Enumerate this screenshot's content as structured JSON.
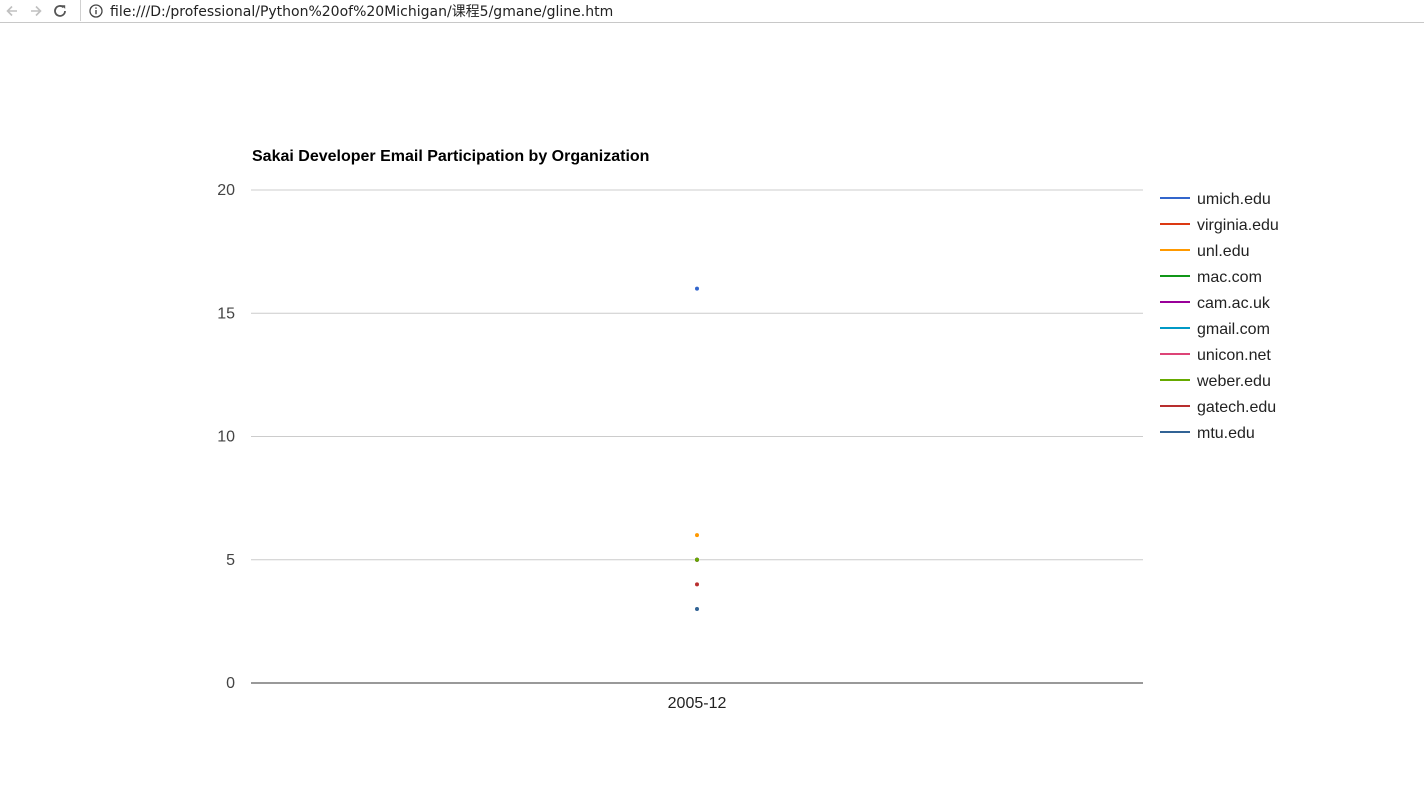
{
  "browser": {
    "url": "file:///D:/professional/Python%20of%20Michigan/课程5/gmane/gline.htm"
  },
  "chart_data": {
    "type": "line",
    "title": "Sakai Developer Email Participation by Organization",
    "xlabel": "",
    "ylabel": "",
    "categories": [
      "2005-12"
    ],
    "ylim": [
      0,
      20
    ],
    "yticks": [
      0,
      5,
      10,
      15,
      20
    ],
    "grid": true,
    "legend": "right",
    "series": [
      {
        "name": "umich.edu",
        "color": "#3366cc",
        "values": [
          16
        ]
      },
      {
        "name": "virginia.edu",
        "color": "#dc3912",
        "values": [
          5
        ]
      },
      {
        "name": "unl.edu",
        "color": "#ff9900",
        "values": [
          6
        ]
      },
      {
        "name": "mac.com",
        "color": "#109618",
        "values": [
          5
        ]
      },
      {
        "name": "cam.ac.uk",
        "color": "#990099",
        "values": [
          5
        ]
      },
      {
        "name": "gmail.com",
        "color": "#0099c6",
        "values": [
          5
        ]
      },
      {
        "name": "unicon.net",
        "color": "#dd4477",
        "values": [
          5
        ]
      },
      {
        "name": "weber.edu",
        "color": "#66aa00",
        "values": [
          5
        ]
      },
      {
        "name": "gatech.edu",
        "color": "#b82e2e",
        "values": [
          4
        ]
      },
      {
        "name": "mtu.edu",
        "color": "#316395",
        "values": [
          3
        ]
      }
    ]
  }
}
